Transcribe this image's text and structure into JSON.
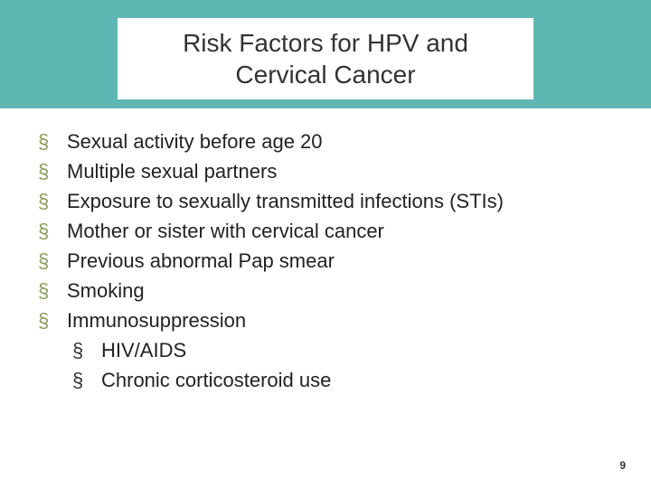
{
  "slide": {
    "title_line1": "Risk Factors for HPV and",
    "title_line2": "Cervical Cancer",
    "title_color": "#333333",
    "title_fontsize": 28,
    "band_color": "#5fb7b3",
    "bullets": [
      {
        "text": "Sexual activity before age 20"
      },
      {
        "text": "Multiple sexual partners"
      },
      {
        "text": "Exposure to sexually transmitted infections (STIs)"
      },
      {
        "text": "Mother or sister with cervical cancer"
      },
      {
        "text": "Previous abnormal Pap smear"
      },
      {
        "text": "Smoking"
      },
      {
        "text": "Immunosuppression"
      }
    ],
    "sub_bullets": [
      {
        "text": "HIV/AIDS"
      },
      {
        "text": "Chronic corticosteroid use"
      }
    ],
    "bullet_glyph": "§",
    "bullet_color_main": "#8a9a5b",
    "bullet_color_sub": "#333333",
    "body_fontsize": 22,
    "body_color": "#222222",
    "page_number": "9",
    "page_number_fontsize": 12,
    "background_color": "#ffffff"
  }
}
